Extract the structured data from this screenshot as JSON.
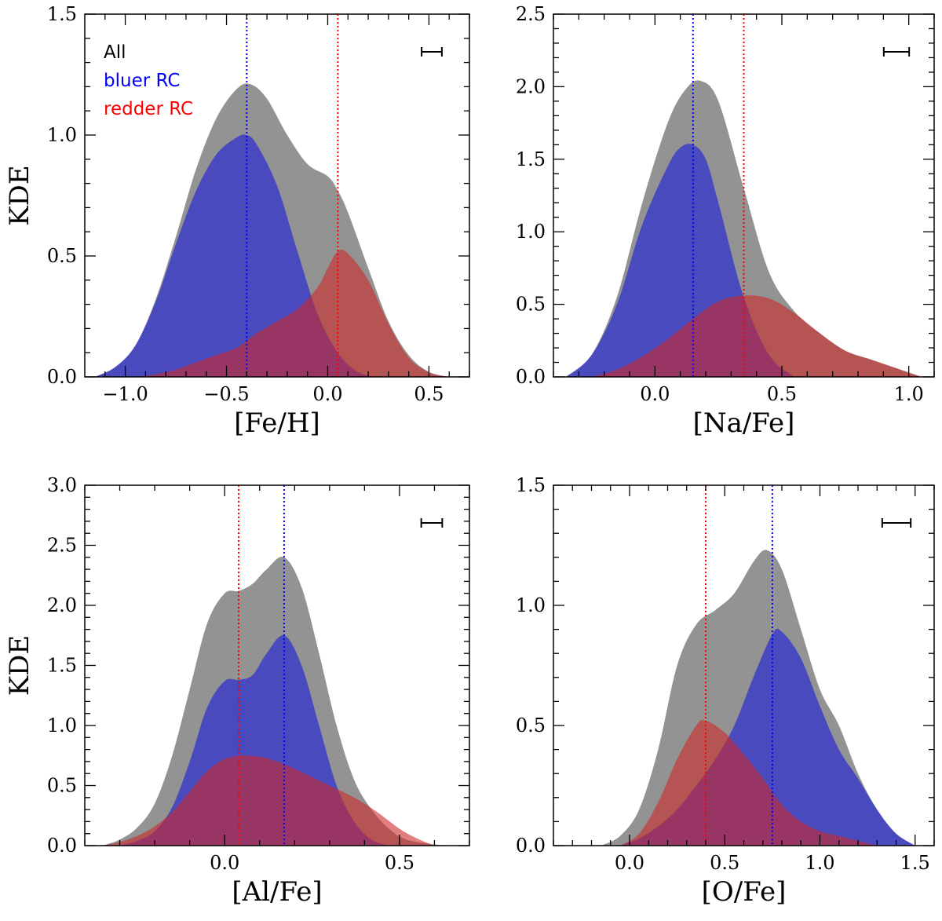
{
  "chart_data": [
    {
      "type": "area",
      "xlabel": "[Fe/H]",
      "ylabel": "KDE",
      "xlim": [
        -1.2,
        0.7
      ],
      "ylim": [
        0,
        1.5
      ],
      "xticks": [
        -1.0,
        -0.5,
        0.0,
        0.5
      ],
      "xtick_labels": [
        "−1.0",
        "−0.5",
        "0.0",
        "0.5"
      ],
      "yticks": [
        0,
        0.5,
        1.0,
        1.5
      ],
      "ytick_labels": [
        "0.0",
        "0.5",
        "1.0",
        "1.5"
      ],
      "legend": [
        {
          "label": "All",
          "color": "#000000"
        },
        {
          "label": "bluer RC",
          "color": "#0000ff"
        },
        {
          "label": "redder RC",
          "color": "#ff0000"
        }
      ],
      "vlines": [
        {
          "series": "bluer RC",
          "x": -0.4,
          "color": "#0000ff"
        },
        {
          "series": "redder RC",
          "x": 0.05,
          "color": "#ff0000"
        }
      ],
      "errorbar_width": 0.1,
      "series": [
        {
          "name": "All",
          "color": "#808080",
          "x": [
            -1.15,
            -1.05,
            -0.95,
            -0.85,
            -0.75,
            -0.65,
            -0.55,
            -0.45,
            -0.38,
            -0.3,
            -0.2,
            -0.1,
            0.0,
            0.05,
            0.1,
            0.2,
            0.3,
            0.4,
            0.5,
            0.6
          ],
          "y": [
            0.0,
            0.04,
            0.13,
            0.32,
            0.58,
            0.86,
            1.07,
            1.19,
            1.21,
            1.15,
            1.0,
            0.88,
            0.83,
            0.77,
            0.68,
            0.45,
            0.23,
            0.09,
            0.02,
            0.0
          ]
        },
        {
          "name": "bluer RC",
          "color": "#3b3bd0",
          "x": [
            -1.15,
            -1.05,
            -0.95,
            -0.85,
            -0.75,
            -0.65,
            -0.55,
            -0.45,
            -0.4,
            -0.35,
            -0.25,
            -0.15,
            -0.05,
            0.05,
            0.15,
            0.25
          ],
          "y": [
            0.0,
            0.04,
            0.13,
            0.31,
            0.55,
            0.77,
            0.92,
            0.99,
            1.0,
            0.96,
            0.79,
            0.52,
            0.26,
            0.1,
            0.02,
            0.0
          ]
        },
        {
          "name": "redder RC",
          "color": "#cc3333",
          "x": [
            -0.95,
            -0.85,
            -0.75,
            -0.65,
            -0.55,
            -0.45,
            -0.35,
            -0.25,
            -0.15,
            -0.05,
            0.0,
            0.05,
            0.1,
            0.2,
            0.3,
            0.4,
            0.5,
            0.6
          ],
          "y": [
            0.0,
            0.01,
            0.03,
            0.06,
            0.09,
            0.12,
            0.18,
            0.23,
            0.28,
            0.37,
            0.45,
            0.52,
            0.51,
            0.4,
            0.22,
            0.08,
            0.02,
            0.0
          ]
        }
      ]
    },
    {
      "type": "area",
      "xlabel": "[Na/Fe]",
      "ylabel": "",
      "xlim": [
        -0.4,
        1.1
      ],
      "ylim": [
        0,
        2.5
      ],
      "xticks": [
        0.0,
        0.5,
        1.0
      ],
      "xtick_labels": [
        "0.0",
        "0.5",
        "1.0"
      ],
      "yticks": [
        0,
        0.5,
        1.0,
        1.5,
        2.0,
        2.5
      ],
      "ytick_labels": [
        "0.0",
        "0.5",
        "1.0",
        "1.5",
        "2.0",
        "2.5"
      ],
      "legend": [],
      "vlines": [
        {
          "series": "bluer RC",
          "x": 0.15,
          "color": "#0000ff"
        },
        {
          "series": "redder RC",
          "x": 0.35,
          "color": "#ff0000"
        }
      ],
      "errorbar_width": 0.1,
      "series": [
        {
          "name": "All",
          "color": "#808080",
          "x": [
            -0.35,
            -0.25,
            -0.15,
            -0.05,
            0.05,
            0.12,
            0.18,
            0.25,
            0.35,
            0.45,
            0.55,
            0.65,
            0.75,
            0.85,
            0.95,
            1.05
          ],
          "y": [
            0.0,
            0.15,
            0.55,
            1.2,
            1.75,
            1.98,
            2.04,
            1.9,
            1.3,
            0.72,
            0.45,
            0.3,
            0.18,
            0.12,
            0.06,
            0.0
          ]
        },
        {
          "name": "bluer RC",
          "color": "#3b3bd0",
          "x": [
            -0.35,
            -0.25,
            -0.15,
            -0.05,
            0.05,
            0.1,
            0.15,
            0.2,
            0.25,
            0.35,
            0.45,
            0.55
          ],
          "y": [
            0.0,
            0.15,
            0.5,
            1.05,
            1.45,
            1.58,
            1.6,
            1.5,
            1.2,
            0.55,
            0.15,
            0.0
          ]
        },
        {
          "name": "redder RC",
          "color": "#cc3333",
          "x": [
            -0.25,
            -0.15,
            -0.05,
            0.05,
            0.15,
            0.25,
            0.35,
            0.45,
            0.55,
            0.65,
            0.75,
            0.85,
            0.95,
            1.05
          ],
          "y": [
            0.0,
            0.05,
            0.14,
            0.26,
            0.4,
            0.52,
            0.56,
            0.54,
            0.44,
            0.3,
            0.18,
            0.12,
            0.06,
            0.0
          ]
        }
      ]
    },
    {
      "type": "area",
      "xlabel": "[Al/Fe]",
      "ylabel": "KDE",
      "xlim": [
        -0.4,
        0.7
      ],
      "ylim": [
        0,
        3.0
      ],
      "xticks": [
        0.0,
        0.5
      ],
      "xtick_labels": [
        "0.0",
        "0.5"
      ],
      "yticks": [
        0,
        0.5,
        1.0,
        1.5,
        2.0,
        2.5,
        3.0
      ],
      "ytick_labels": [
        "0.0",
        "0.5",
        "1.0",
        "1.5",
        "2.0",
        "2.5",
        "3.0"
      ],
      "legend": [],
      "vlines": [
        {
          "series": "redder RC",
          "x": 0.04,
          "color": "#ff0000"
        },
        {
          "series": "bluer RC",
          "x": 0.17,
          "color": "#0000ff"
        }
      ],
      "errorbar_width": 0.06,
      "series": [
        {
          "name": "All",
          "color": "#808080",
          "x": [
            -0.35,
            -0.3,
            -0.25,
            -0.2,
            -0.15,
            -0.1,
            -0.05,
            0.0,
            0.04,
            0.08,
            0.12,
            0.17,
            0.22,
            0.27,
            0.32,
            0.37,
            0.42,
            0.47,
            0.52,
            0.6,
            0.65
          ],
          "y": [
            0.0,
            0.05,
            0.15,
            0.35,
            0.75,
            1.3,
            1.85,
            2.1,
            2.12,
            2.18,
            2.3,
            2.4,
            2.15,
            1.6,
            1.0,
            0.55,
            0.3,
            0.14,
            0.05,
            0.01,
            0.0
          ]
        },
        {
          "name": "bluer RC",
          "color": "#3b3bd0",
          "x": [
            -0.3,
            -0.25,
            -0.2,
            -0.15,
            -0.1,
            -0.05,
            0.0,
            0.04,
            0.08,
            0.12,
            0.17,
            0.22,
            0.27,
            0.32,
            0.37,
            0.42,
            0.47
          ],
          "y": [
            0.0,
            0.04,
            0.12,
            0.32,
            0.7,
            1.15,
            1.37,
            1.38,
            1.42,
            1.6,
            1.75,
            1.5,
            1.0,
            0.5,
            0.2,
            0.05,
            0.0
          ]
        },
        {
          "name": "redder RC",
          "color": "#cc3333",
          "x": [
            -0.35,
            -0.3,
            -0.25,
            -0.2,
            -0.15,
            -0.1,
            -0.05,
            0.0,
            0.05,
            0.1,
            0.15,
            0.2,
            0.25,
            0.3,
            0.35,
            0.4,
            0.45,
            0.5,
            0.55,
            0.6
          ],
          "y": [
            0.0,
            0.03,
            0.08,
            0.16,
            0.28,
            0.45,
            0.62,
            0.72,
            0.75,
            0.74,
            0.7,
            0.64,
            0.57,
            0.5,
            0.43,
            0.35,
            0.25,
            0.14,
            0.06,
            0.0
          ]
        }
      ]
    },
    {
      "type": "area",
      "xlabel": "[O/Fe]",
      "ylabel": "",
      "xlim": [
        -0.4,
        1.6
      ],
      "ylim": [
        0,
        1.5
      ],
      "xticks": [
        0.0,
        0.5,
        1.0,
        1.5
      ],
      "xtick_labels": [
        "0.0",
        "0.5",
        "1.0",
        "1.5"
      ],
      "yticks": [
        0,
        0.5,
        1.0,
        1.5
      ],
      "ytick_labels": [
        "0.0",
        "0.5",
        "1.0",
        "1.5"
      ],
      "legend": [],
      "vlines": [
        {
          "series": "redder RC",
          "x": 0.4,
          "color": "#ff0000"
        },
        {
          "series": "bluer RC",
          "x": 0.75,
          "color": "#0000ff"
        }
      ],
      "errorbar_width": 0.15,
      "series": [
        {
          "name": "All",
          "color": "#808080",
          "x": [
            -0.15,
            -0.05,
            0.05,
            0.15,
            0.25,
            0.35,
            0.45,
            0.55,
            0.65,
            0.72,
            0.8,
            0.9,
            1.0,
            1.1,
            1.2,
            1.3,
            1.4,
            1.5
          ],
          "y": [
            0.0,
            0.04,
            0.15,
            0.4,
            0.75,
            0.92,
            0.98,
            1.05,
            1.18,
            1.23,
            1.15,
            0.9,
            0.65,
            0.5,
            0.3,
            0.15,
            0.05,
            0.0
          ]
        },
        {
          "name": "bluer RC",
          "color": "#3b3bd0",
          "x": [
            -0.05,
            0.05,
            0.15,
            0.25,
            0.35,
            0.45,
            0.55,
            0.65,
            0.75,
            0.8,
            0.9,
            1.0,
            1.1,
            1.2,
            1.3,
            1.4,
            1.5
          ],
          "y": [
            0.0,
            0.03,
            0.08,
            0.15,
            0.25,
            0.36,
            0.5,
            0.7,
            0.88,
            0.89,
            0.78,
            0.58,
            0.4,
            0.28,
            0.15,
            0.05,
            0.0
          ]
        },
        {
          "name": "redder RC",
          "color": "#cc3333",
          "x": [
            -0.05,
            0.05,
            0.15,
            0.25,
            0.35,
            0.4,
            0.5,
            0.6,
            0.7,
            0.8,
            0.9,
            1.0,
            1.1,
            1.2,
            1.3
          ],
          "y": [
            0.0,
            0.05,
            0.18,
            0.36,
            0.5,
            0.52,
            0.47,
            0.38,
            0.28,
            0.17,
            0.1,
            0.06,
            0.04,
            0.02,
            0.0
          ]
        }
      ]
    }
  ]
}
